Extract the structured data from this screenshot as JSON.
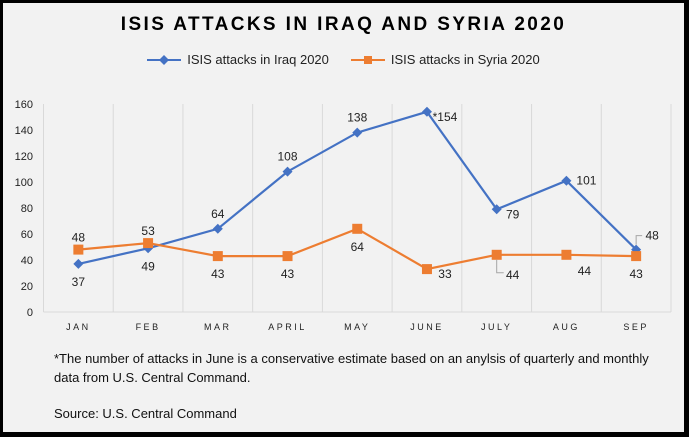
{
  "chart_data": {
    "type": "line",
    "title": "ISIS ATTACKS IN IRAQ AND SYRIA 2020",
    "categories": [
      "JAN",
      "FEB",
      "MAR",
      "APRIL",
      "MAY",
      "JUNE",
      "JULY",
      "AUG",
      "SEP"
    ],
    "ylim": [
      0,
      160
    ],
    "yticks": [
      0,
      20,
      40,
      60,
      80,
      100,
      120,
      140,
      160
    ],
    "grid": "vertical category lines",
    "legend_position": "top",
    "series": [
      {
        "name": "ISIS attacks in Iraq 2020",
        "color": "#4472c4",
        "marker": "diamond",
        "values": [
          37,
          49,
          64,
          108,
          138,
          154,
          79,
          101,
          48
        ],
        "labels": [
          "37",
          "49",
          "64",
          "108",
          "138",
          "*154",
          "79",
          "101",
          "48"
        ]
      },
      {
        "name": "ISIS attacks in Syria 2020",
        "color": "#ed7d31",
        "marker": "square",
        "values": [
          48,
          53,
          43,
          43,
          64,
          33,
          44,
          44,
          43
        ],
        "labels": [
          "48",
          "53",
          "43",
          "43",
          "64",
          "33",
          "44",
          "44",
          "43"
        ]
      }
    ]
  },
  "footnote": "*The number of attacks in June is a conservative estimate based on an anylsis of quarterly and monthly data from U.S. Central Command.",
  "source": "Source: U.S. Central Command"
}
